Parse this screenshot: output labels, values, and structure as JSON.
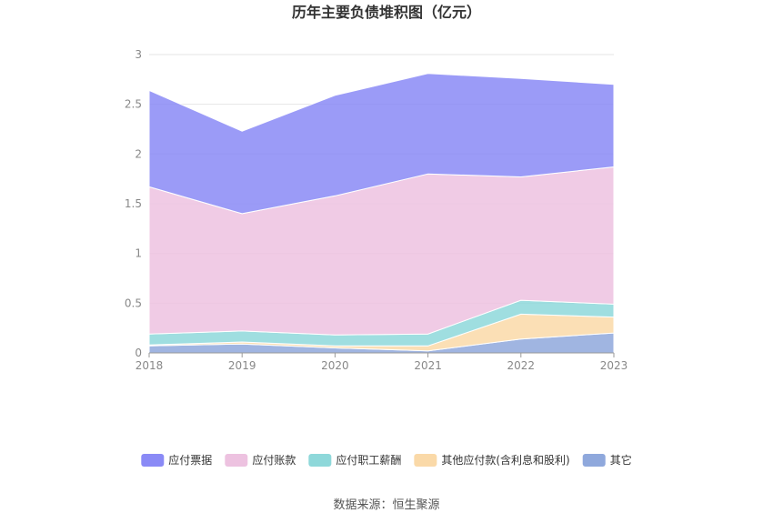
{
  "chart_data": {
    "type": "area",
    "stacked": true,
    "title": "历年主要负债堆积图（亿元）",
    "x": [
      "2018",
      "2019",
      "2020",
      "2021",
      "2022",
      "2023"
    ],
    "y_ticks": [
      "0",
      "0.5",
      "1",
      "1.5",
      "2",
      "2.5",
      "3"
    ],
    "ylim": [
      0,
      3
    ],
    "grid": true,
    "legend_position": "bottom",
    "series": [
      {
        "name": "其它",
        "color": "#8FA8DC",
        "values": [
          0.07,
          0.09,
          0.05,
          0.02,
          0.14,
          0.2
        ]
      },
      {
        "name": "其他应付款(含利息和股利)",
        "color": "#FAD9A8",
        "values": [
          0.01,
          0.02,
          0.02,
          0.05,
          0.25,
          0.16
        ]
      },
      {
        "name": "应付职工薪酬",
        "color": "#8ED8DA",
        "values": [
          0.11,
          0.11,
          0.11,
          0.12,
          0.14,
          0.13
        ]
      },
      {
        "name": "应付账款",
        "color": "#EDC2E0",
        "values": [
          1.48,
          1.18,
          1.4,
          1.61,
          1.24,
          1.38
        ]
      },
      {
        "name": "应付票据",
        "color": "#8A8AF6",
        "values": [
          0.97,
          0.83,
          1.01,
          1.01,
          0.99,
          0.83
        ]
      }
    ],
    "legend_order": [
      "应付票据",
      "应付账款",
      "应付职工薪酬",
      "其他应付款(含利息和股利)",
      "其它"
    ]
  },
  "source_text": "数据来源：恒生聚源"
}
